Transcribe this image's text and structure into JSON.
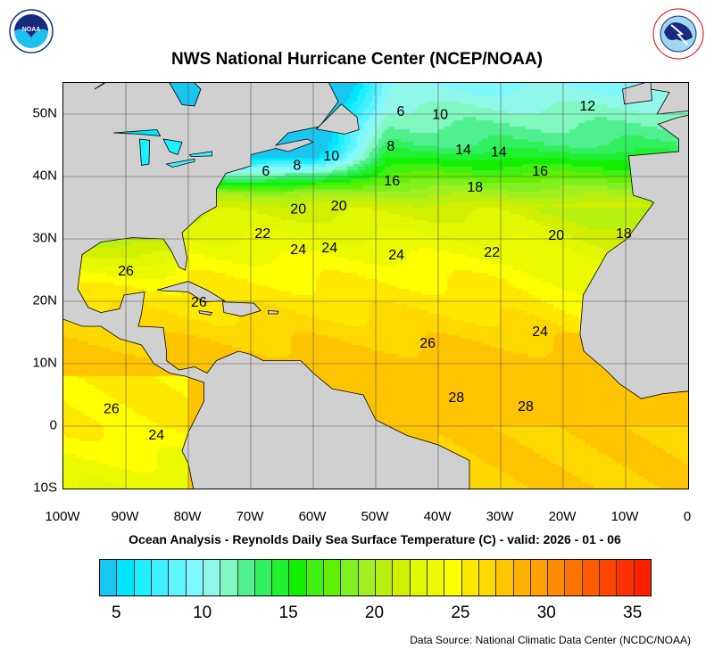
{
  "header": {
    "title": "NWS National Hurricane Center (NCEP/NOAA)",
    "logo_left": "NOAA",
    "logo_right": "NATIONAL WEATHER SERVICE"
  },
  "map": {
    "lon_range": [
      -100,
      0
    ],
    "lat_range": [
      -10,
      55
    ],
    "land_color": "#d0d0d0",
    "grid": true,
    "lat_labels": [
      {
        "lat": 50,
        "text": "50N"
      },
      {
        "lat": 40,
        "text": "40N"
      },
      {
        "lat": 30,
        "text": "30N"
      },
      {
        "lat": 20,
        "text": "20N"
      },
      {
        "lat": 10,
        "text": "10N"
      },
      {
        "lat": 0,
        "text": "0"
      },
      {
        "lat": -10,
        "text": "10S"
      }
    ],
    "lon_labels": [
      {
        "lon": -100,
        "text": "100W"
      },
      {
        "lon": -90,
        "text": "90W"
      },
      {
        "lon": -80,
        "text": "80W"
      },
      {
        "lon": -70,
        "text": "70W"
      },
      {
        "lon": -60,
        "text": "60W"
      },
      {
        "lon": -50,
        "text": "50W"
      },
      {
        "lon": -40,
        "text": "40W"
      },
      {
        "lon": -30,
        "text": "30W"
      },
      {
        "lon": -20,
        "text": "20W"
      },
      {
        "lon": -10,
        "text": "10W"
      },
      {
        "lon": 0,
        "text": "0"
      }
    ],
    "contour_labels": [
      {
        "text": "6",
        "lon": -46,
        "lat": 50.6
      },
      {
        "text": "10",
        "lon": -39.7,
        "lat": 50.1
      },
      {
        "text": "12",
        "lon": -16.1,
        "lat": 51.4
      },
      {
        "text": "8",
        "lon": -47.6,
        "lat": 45
      },
      {
        "text": "14",
        "lon": -36,
        "lat": 44.4
      },
      {
        "text": "14",
        "lon": -30.3,
        "lat": 44.1
      },
      {
        "text": "16",
        "lon": -23.7,
        "lat": 41
      },
      {
        "text": "6",
        "lon": -67.6,
        "lat": 41
      },
      {
        "text": "8",
        "lon": -62.6,
        "lat": 41.9
      },
      {
        "text": "10",
        "lon": -57.1,
        "lat": 43.4
      },
      {
        "text": "16",
        "lon": -47.4,
        "lat": 39.4
      },
      {
        "text": "18",
        "lon": -34.1,
        "lat": 38.4
      },
      {
        "text": "20",
        "lon": -62.4,
        "lat": 34.9
      },
      {
        "text": "20",
        "lon": -55.9,
        "lat": 35.4
      },
      {
        "text": "22",
        "lon": -68.1,
        "lat": 31
      },
      {
        "text": "20",
        "lon": -21.1,
        "lat": 30.7
      },
      {
        "text": "18",
        "lon": -10.3,
        "lat": 31
      },
      {
        "text": "24",
        "lon": -62.4,
        "lat": 28.4
      },
      {
        "text": "24",
        "lon": -57.4,
        "lat": 28.7
      },
      {
        "text": "24",
        "lon": -46.7,
        "lat": 27.6
      },
      {
        "text": "22",
        "lon": -31.4,
        "lat": 28
      },
      {
        "text": "26",
        "lon": -90,
        "lat": 25
      },
      {
        "text": "26",
        "lon": -78.3,
        "lat": 20
      },
      {
        "text": "26",
        "lon": -41.7,
        "lat": 13.4
      },
      {
        "text": "24",
        "lon": -23.7,
        "lat": 15.3
      },
      {
        "text": "28",
        "lon": -37.1,
        "lat": 4.7
      },
      {
        "text": "28",
        "lon": -26,
        "lat": 3.3
      },
      {
        "text": "26",
        "lon": -92.3,
        "lat": 2.9
      },
      {
        "text": "24",
        "lon": -85.1,
        "lat": -1.3
      }
    ]
  },
  "subtitle": "Ocean Analysis - Reynolds Daily Sea Surface Temperature (C) - valid: 2026 - 01 - 06",
  "colorbar": {
    "min": 4,
    "max": 36,
    "unit": "C",
    "colors": [
      "#19c6f0",
      "#00e6ff",
      "#1ef0ff",
      "#40f0ff",
      "#60f4ff",
      "#80f8ff",
      "#90f8e8",
      "#80f8c0",
      "#50f090",
      "#30f060",
      "#20f030",
      "#10f000",
      "#40f010",
      "#60f000",
      "#80f020",
      "#a0f020",
      "#b8f010",
      "#d0f000",
      "#e0f800",
      "#ecfa00",
      "#ffff00",
      "#ffe800",
      "#ffd800",
      "#ffc400",
      "#ffb000",
      "#ffa000",
      "#ff8c00",
      "#ff7400",
      "#ff5c00",
      "#ff4400",
      "#ff3000",
      "#ff2000"
    ],
    "labels": [
      {
        "value": 5,
        "text": "5"
      },
      {
        "value": 10,
        "text": "10"
      },
      {
        "value": 15,
        "text": "15"
      },
      {
        "value": 20,
        "text": "20"
      },
      {
        "value": 25,
        "text": "25"
      },
      {
        "value": 30,
        "text": "30"
      },
      {
        "value": 35,
        "text": "35"
      }
    ]
  },
  "footer": {
    "source": "Data Source: National Climatic Data Center (NCDC/NOAA)"
  }
}
